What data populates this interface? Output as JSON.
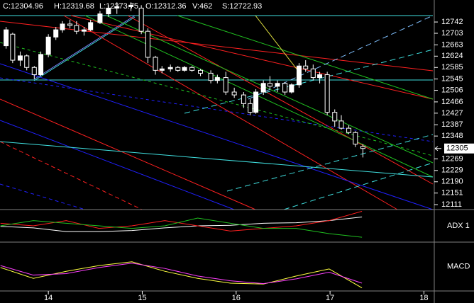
{
  "chart_data": {
    "type": "candlestick",
    "header": [
      "C:12304.96",
      "H:12319.68",
      "L:12273.75",
      "O:12312.36",
      "V:462",
      "S:12722.93"
    ],
    "xlim": [
      13.485,
      18.11
    ],
    "xticks": [
      14,
      15,
      16,
      17,
      18
    ],
    "ylim": [
      12094,
      12818
    ],
    "yticks": [
      12742,
      12703,
      12663,
      12624,
      12585,
      12545,
      12506,
      12466,
      12427,
      12387,
      12348,
      12269,
      12229,
      12190,
      12151,
      12111
    ],
    "last_price": 12305,
    "up_color": "#ffffff",
    "down_color": "#000000",
    "candles": {
      "x": [
        13.55,
        13.62,
        13.7,
        13.77,
        13.85,
        13.92,
        14.0,
        14.08,
        14.15,
        14.23,
        14.3,
        14.38,
        14.45,
        14.55,
        14.64,
        14.73,
        14.88,
        14.99,
        15.06,
        15.14,
        15.21,
        15.3,
        15.38,
        15.45,
        15.53,
        15.62,
        15.73,
        15.8,
        15.89,
        15.98,
        16.08,
        16.15,
        16.21,
        16.29,
        16.36,
        16.44,
        16.52,
        16.59,
        16.67,
        16.74,
        16.82,
        16.89,
        16.97,
        17.05,
        17.12,
        17.2,
        17.27,
        17.35
      ],
      "open": [
        12660,
        12700,
        12610,
        12625,
        12585,
        12560,
        12630,
        12690,
        12715,
        12735,
        12730,
        12710,
        12715,
        12740,
        12770,
        12790,
        12795,
        12790,
        12710,
        12620,
        12575,
        12580,
        12585,
        12575,
        12585,
        12575,
        12565,
        12540,
        12550,
        12500,
        12490,
        12460,
        12430,
        12500,
        12530,
        12520,
        12530,
        12500,
        12525,
        12590,
        12580,
        12550,
        12560,
        12430,
        12400,
        12375,
        12360,
        12312
      ],
      "high": [
        12725,
        12705,
        12640,
        12630,
        12590,
        12640,
        12700,
        12725,
        12745,
        12750,
        12745,
        12725,
        12750,
        12780,
        12800,
        12810,
        12810,
        12800,
        12720,
        12625,
        12590,
        12595,
        12590,
        12590,
        12590,
        12580,
        12575,
        12560,
        12570,
        12515,
        12500,
        12475,
        12510,
        12540,
        12555,
        12540,
        12535,
        12530,
        12600,
        12610,
        12595,
        12570,
        12570,
        12440,
        12420,
        12385,
        12365,
        12320
      ],
      "low": [
        12650,
        12600,
        12590,
        12575,
        12545,
        12555,
        12620,
        12680,
        12705,
        12720,
        12700,
        12695,
        12710,
        12735,
        12760,
        12770,
        12780,
        12700,
        12600,
        12560,
        12565,
        12570,
        12570,
        12570,
        12570,
        12555,
        12530,
        12530,
        12490,
        12480,
        12445,
        12420,
        12425,
        12490,
        12510,
        12500,
        12490,
        12495,
        12515,
        12570,
        12540,
        12530,
        12420,
        12380,
        12370,
        12355,
        12310,
        12274
      ],
      "close": [
        12715,
        12610,
        12625,
        12585,
        12560,
        12630,
        12690,
        12715,
        12735,
        12730,
        12710,
        12715,
        12740,
        12770,
        12790,
        12795,
        12800,
        12710,
        12620,
        12575,
        12580,
        12585,
        12575,
        12585,
        12575,
        12565,
        12540,
        12550,
        12500,
        12490,
        12460,
        12430,
        12500,
        12530,
        12520,
        12530,
        12500,
        12525,
        12590,
        12580,
        12550,
        12560,
        12430,
        12400,
        12375,
        12360,
        12320,
        12305
      ]
    },
    "panels": [
      {
        "label": "ADX 1",
        "ylim": [
          0,
          60
        ],
        "x": [
          13.49,
          13.84,
          14.19,
          14.54,
          14.89,
          15.24,
          15.59,
          15.94,
          16.29,
          16.64,
          16.99,
          17.34
        ],
        "series": [
          {
            "color": "#ffffff",
            "values": [
              29,
              26,
              19,
              19,
              21,
              26,
              30,
              31,
              35,
              36,
              40,
              47
            ]
          },
          {
            "color": "#ff2020",
            "values": [
              35,
              30,
              40,
              25,
              30,
              40,
              30,
              20,
              25,
              30,
              40,
              58
            ]
          },
          {
            "color": "#20c020",
            "values": [
              30,
              40,
              35,
              30,
              25,
              30,
              45,
              35,
              25,
              25,
              15,
              8
            ]
          }
        ]
      },
      {
        "label": "MACD",
        "ylim": [
          -60,
          40
        ],
        "x": [
          13.49,
          13.84,
          14.19,
          14.54,
          14.89,
          15.24,
          15.59,
          15.94,
          16.29,
          16.64,
          16.99,
          17.34
        ],
        "series": [
          {
            "color": "#ffff40",
            "values": [
              -12,
              -35,
              -20,
              -8,
              0,
              -20,
              -35,
              -45,
              -47,
              -30,
              -15,
              -55
            ]
          },
          {
            "color": "#ff40ff",
            "values": [
              -8,
              -28,
              -25,
              -12,
              -3,
              -14,
              -30,
              -40,
              -46,
              -36,
              -22,
              -45
            ]
          }
        ]
      }
    ]
  }
}
